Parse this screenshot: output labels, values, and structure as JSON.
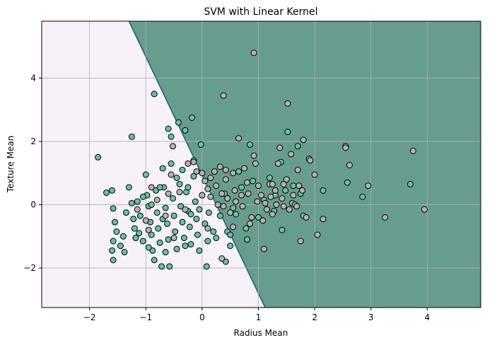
{
  "chart_data": {
    "type": "scatter",
    "title": "SVM with Linear Kernel",
    "xlabel": "Radius Mean",
    "ylabel": "Texture Mean",
    "xlim": [
      -2.85,
      4.95
    ],
    "ylim": [
      -3.25,
      5.8
    ],
    "x_ticks": [
      -2,
      -1,
      0,
      1,
      2,
      3,
      4
    ],
    "y_ticks": [
      -2,
      0,
      2,
      4
    ],
    "x_tick_labels": [
      "−2",
      "−1",
      "0",
      "1",
      "2",
      "3",
      "4"
    ],
    "y_tick_labels": [
      "−2",
      "0",
      "2",
      "4"
    ],
    "grid": true,
    "decision_boundary": {
      "x1": -1.3,
      "y1": 5.8,
      "x2": 1.12,
      "y2": -3.25
    },
    "region_colors": {
      "left": "#f7f2f9",
      "right": "#669d8f",
      "boundary": "#1a5f6e"
    },
    "point_colors": {
      "class_0": "#66c2a5",
      "class_1": "#b3b3b3",
      "edge": "#000000"
    },
    "series": [
      {
        "color": "#66c2a5",
        "points": [
          [
            -1.85,
            1.5
          ],
          [
            -1.7,
            0.38
          ],
          [
            -1.6,
            0.45
          ],
          [
            -1.58,
            -0.12
          ],
          [
            -1.55,
            -0.55
          ],
          [
            -1.52,
            -0.85
          ],
          [
            -1.58,
            -1.15
          ],
          [
            -1.6,
            -1.45
          ],
          [
            -1.58,
            -1.75
          ],
          [
            -1.45,
            -1.3
          ],
          [
            -1.38,
            -1.5
          ],
          [
            -1.35,
            -0.25
          ],
          [
            -1.3,
            0.55
          ],
          [
            -1.25,
            0.05
          ],
          [
            -1.22,
            -0.45
          ],
          [
            -1.2,
            -0.75
          ],
          [
            -1.18,
            -1.05
          ],
          [
            -1.15,
            0.1
          ],
          [
            -1.1,
            -0.35
          ],
          [
            -1.05,
            -1.15
          ],
          [
            -1.0,
            0.95
          ],
          [
            -0.98,
            0.3
          ],
          [
            -0.95,
            -0.05
          ],
          [
            -0.92,
            -0.55
          ],
          [
            -0.9,
            -0.95
          ],
          [
            -0.88,
            -1.45
          ],
          [
            -0.85,
            -1.75
          ],
          [
            -0.82,
            0.45
          ],
          [
            -0.8,
            -0.25
          ],
          [
            -0.78,
            -0.75
          ],
          [
            -0.75,
            -1.2
          ],
          [
            -0.72,
            -1.95
          ],
          [
            -0.7,
            1.15
          ],
          [
            -0.68,
            0.55
          ],
          [
            -0.65,
            -0.1
          ],
          [
            -0.62,
            -0.6
          ],
          [
            -0.6,
            -1.1
          ],
          [
            -0.58,
            -1.95
          ],
          [
            -0.55,
            1.3
          ],
          [
            -0.52,
            0.2
          ],
          [
            -0.5,
            -0.35
          ],
          [
            -0.48,
            -0.85
          ],
          [
            -0.45,
            -1.4
          ],
          [
            -0.42,
            2.6
          ],
          [
            -0.4,
            0.65
          ],
          [
            -0.38,
            -0.05
          ],
          [
            -0.35,
            -0.55
          ],
          [
            -0.32,
            -1.05
          ],
          [
            -0.3,
            2.35
          ],
          [
            -0.28,
            0.4
          ],
          [
            -0.25,
            -0.2
          ],
          [
            -0.22,
            -0.7
          ],
          [
            -0.2,
            -1.25
          ],
          [
            -0.18,
            2.75
          ],
          [
            -0.15,
            0.9
          ],
          [
            -0.12,
            0.1
          ],
          [
            -0.1,
            -0.45
          ],
          [
            -0.08,
            -0.95
          ],
          [
            -0.05,
            -1.45
          ],
          [
            -0.02,
            1.9
          ],
          [
            0.0,
            0.3
          ],
          [
            0.05,
            -0.6
          ],
          [
            0.08,
            -1.95
          ],
          [
            0.1,
            -1.15
          ],
          [
            -0.6,
            2.4
          ],
          [
            -0.65,
            -1.5
          ],
          [
            -0.85,
            3.5
          ],
          [
            -1.25,
            2.15
          ],
          [
            -1.05,
            0.25
          ],
          [
            -0.95,
            -1.35
          ],
          [
            -0.75,
            0.55
          ],
          [
            -0.55,
            2.15
          ],
          [
            -0.45,
            0.85
          ],
          [
            -0.35,
            1.1
          ],
          [
            -0.25,
            0.55
          ],
          [
            -0.15,
            1.4
          ],
          [
            -0.05,
            -0.15
          ],
          [
            0.12,
            -0.25
          ],
          [
            0.2,
            -0.85
          ],
          [
            0.25,
            -1.05
          ],
          [
            0.32,
            -0.35
          ],
          [
            0.4,
            0.35
          ],
          [
            0.45,
            -0.85
          ],
          [
            0.5,
            -1.3
          ],
          [
            0.55,
            -0.1
          ],
          [
            0.6,
            -0.3
          ],
          [
            0.7,
            0.55
          ],
          [
            0.78,
            -0.75
          ],
          [
            0.85,
            1.9
          ],
          [
            0.9,
            0.75
          ],
          [
            1.0,
            -0.4
          ],
          [
            1.1,
            0.15
          ],
          [
            1.2,
            0.85
          ],
          [
            1.28,
            -0.2
          ],
          [
            1.4,
            1.35
          ],
          [
            1.48,
            0.45
          ],
          [
            1.52,
            2.3
          ],
          [
            1.6,
            0.05
          ],
          [
            1.7,
            1.85
          ],
          [
            1.75,
            0.35
          ],
          [
            1.8,
            -0.35
          ],
          [
            1.9,
            1.45
          ],
          [
            2.15,
            0.45
          ],
          [
            2.55,
            1.85
          ],
          [
            2.58,
            0.7
          ],
          [
            2.85,
            0.25
          ],
          [
            3.7,
            0.65
          ],
          [
            0.8,
            -1.1
          ],
          [
            0.5,
            -0.95
          ],
          [
            0.42,
            -1.8
          ],
          [
            0.65,
            1.05
          ],
          [
            1.3,
            0.3
          ],
          [
            1.62,
            0.6
          ],
          [
            1.42,
            -0.8
          ],
          [
            -0.3,
            -1.3
          ],
          [
            -0.2,
            -0.3
          ],
          [
            -0.7,
            -0.45
          ],
          [
            -1.12,
            -0.9
          ],
          [
            -1.4,
            -1.0
          ],
          [
            -0.9,
            0.0
          ]
        ]
      },
      {
        "color": "#b3b3b3",
        "points": [
          [
            0.92,
            4.8
          ],
          [
            0.38,
            3.45
          ],
          [
            1.52,
            3.2
          ],
          [
            -0.52,
            1.85
          ],
          [
            -0.15,
            1.35
          ],
          [
            0.0,
            1.0
          ],
          [
            0.05,
            0.75
          ],
          [
            0.1,
            0.5
          ],
          [
            0.15,
            0.25
          ],
          [
            0.22,
            1.05
          ],
          [
            0.25,
            0.6
          ],
          [
            0.28,
            0.0
          ],
          [
            0.32,
            1.2
          ],
          [
            0.35,
            0.35
          ],
          [
            0.38,
            -0.05
          ],
          [
            0.42,
            0.8
          ],
          [
            0.45,
            0.2
          ],
          [
            0.5,
            -0.25
          ],
          [
            0.55,
            1.0
          ],
          [
            0.58,
            0.45
          ],
          [
            0.6,
            0.1
          ],
          [
            0.65,
            2.1
          ],
          [
            0.7,
            0.3
          ],
          [
            0.72,
            -0.05
          ],
          [
            0.75,
            1.15
          ],
          [
            0.8,
            0.7
          ],
          [
            0.82,
            0.35
          ],
          [
            0.85,
            -0.6
          ],
          [
            0.88,
            -0.4
          ],
          [
            0.92,
            1.55
          ],
          [
            0.95,
            1.3
          ],
          [
            0.98,
            0.1
          ],
          [
            1.0,
            0.6
          ],
          [
            1.05,
            0.3
          ],
          [
            1.1,
            -1.4
          ],
          [
            1.12,
            0.05
          ],
          [
            1.15,
            -0.15
          ],
          [
            1.2,
            0.65
          ],
          [
            1.22,
            0.25
          ],
          [
            1.25,
            -0.3
          ],
          [
            1.3,
            0.45
          ],
          [
            1.32,
            0.0
          ],
          [
            1.35,
            1.3
          ],
          [
            1.38,
            1.8
          ],
          [
            1.42,
            0.2
          ],
          [
            1.45,
            -0.05
          ],
          [
            1.5,
            0.8
          ],
          [
            1.55,
            -0.15
          ],
          [
            1.58,
            1.6
          ],
          [
            1.62,
            0.3
          ],
          [
            1.65,
            0.0
          ],
          [
            1.7,
            1.1
          ],
          [
            1.72,
            0.6
          ],
          [
            1.75,
            -1.15
          ],
          [
            1.78,
            0.45
          ],
          [
            1.8,
            2.05
          ],
          [
            1.85,
            -0.4
          ],
          [
            1.92,
            1.4
          ],
          [
            2.0,
            0.95
          ],
          [
            2.05,
            -0.95
          ],
          [
            2.15,
            -0.45
          ],
          [
            2.55,
            1.8
          ],
          [
            2.62,
            1.25
          ],
          [
            2.95,
            0.6
          ],
          [
            3.25,
            -0.4
          ],
          [
            3.75,
            1.7
          ],
          [
            3.95,
            -0.15
          ],
          [
            -0.55,
            0.95
          ],
          [
            -0.4,
            0.4
          ],
          [
            -0.3,
            -0.15
          ],
          [
            -0.25,
            1.3
          ],
          [
            -0.1,
            1.05
          ],
          [
            0.0,
            0.3
          ],
          [
            -0.8,
            0.15
          ],
          [
            -0.65,
            -0.35
          ],
          [
            -1.0,
            -0.5
          ],
          [
            -0.95,
            -0.8
          ],
          [
            -0.5,
            -1.05
          ],
          [
            0.1,
            -0.75
          ],
          [
            0.15,
            0.85
          ],
          [
            -0.6,
            0.35
          ],
          [
            -0.9,
            0.55
          ],
          [
            -1.15,
            -0.15
          ],
          [
            0.35,
            -1.7
          ],
          [
            0.55,
            -0.7
          ],
          [
            1.08,
            -0.5
          ],
          [
            1.25,
            0.65
          ],
          [
            1.45,
            0.65
          ],
          [
            1.68,
            -0.05
          ],
          [
            0.42,
            1.1
          ]
        ]
      }
    ]
  }
}
